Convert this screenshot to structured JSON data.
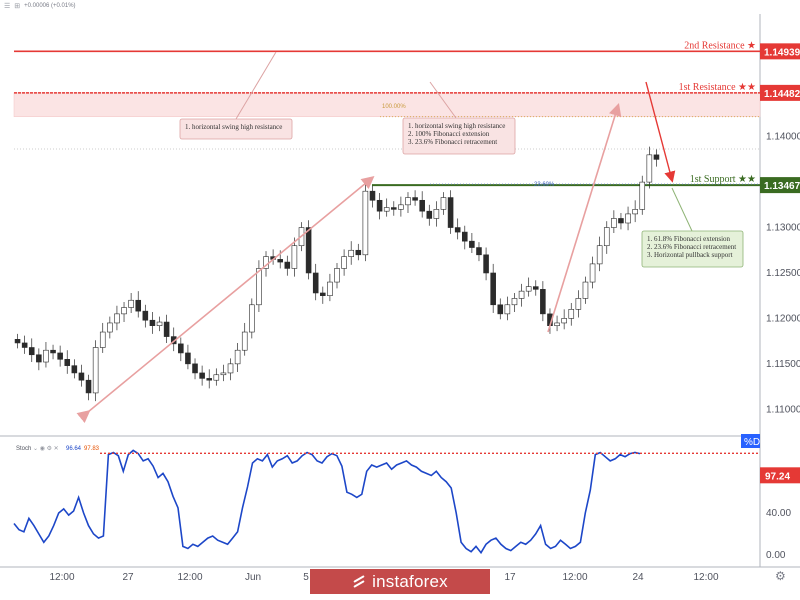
{
  "header": {
    "change_text": "+0.00006 (+0.01%)"
  },
  "colors": {
    "candle": "#2b2b2b",
    "resistance_line": "#e53935",
    "resistance_zone": "#fbe4e4",
    "support_line": "#3a6b21",
    "arrow_pink": "#e8a0a0",
    "stoch_line": "#1d47c8",
    "price_badge_red": "#e53935",
    "price_badge_green": "#3a6b21",
    "stoch_badge_blue": "#2962ff"
  },
  "chart_data": [
    {
      "type": "candlestick",
      "title": "",
      "y_ticks": [
        "1.14000",
        "1.13500",
        "1.13000",
        "1.12500",
        "1.12000",
        "1.11500",
        "1.11000"
      ],
      "ylim": [
        1.1075,
        1.1535
      ],
      "x_tick_labels": [
        "12:00",
        "27",
        "12:00",
        "Jun",
        "5",
        "17",
        "12:00",
        "24",
        "12:00"
      ],
      "series": [
        {
          "values": [
            1.1173,
            1.1168,
            1.116,
            1.1152,
            1.1165,
            1.1162,
            1.1155,
            1.1148,
            1.114,
            1.1132,
            1.1118,
            1.1168,
            1.1185,
            1.1195,
            1.1205,
            1.1212,
            1.122,
            1.1208,
            1.1198,
            1.1192,
            1.1196,
            1.118,
            1.1172,
            1.1162,
            1.115,
            1.114,
            1.1134,
            1.1132,
            1.1138,
            1.114,
            1.115,
            1.1165,
            1.1185,
            1.1215,
            1.1255,
            1.1268,
            1.1265,
            1.1262,
            1.1255,
            1.128,
            1.13,
            1.125,
            1.1228,
            1.1225,
            1.124,
            1.1255,
            1.1268,
            1.1275,
            1.127,
            1.134,
            1.133,
            1.1318,
            1.1322,
            1.132,
            1.1325,
            1.1333,
            1.133,
            1.1318,
            1.131,
            1.132,
            1.1333,
            1.13,
            1.1295,
            1.1285,
            1.1278,
            1.127,
            1.125,
            1.1215,
            1.1205,
            1.1215,
            1.1222,
            1.123,
            1.1235,
            1.1232,
            1.1205,
            1.1192,
            1.1195,
            1.12,
            1.121,
            1.1222,
            1.124,
            1.126,
            1.128,
            1.13,
            1.131,
            1.1305,
            1.1315,
            1.132,
            1.135,
            1.138,
            1.1375
          ]
        }
      ],
      "levels": [
        {
          "name": "2nd Resistance",
          "stars": "★",
          "value": 1.14939
        },
        {
          "name": "1st Resistance",
          "stars": "★★",
          "value": 1.14482
        },
        {
          "name": "1st Support",
          "stars": "★★",
          "value": 1.13467
        }
      ],
      "resistance_zone": [
        1.1422,
        1.14482
      ],
      "fib_labels": [
        "100.00%",
        "23.60%"
      ],
      "notes": [
        [
          "1. horizontal swing high resistance"
        ],
        [
          "1. horizontal swing high resistance",
          "2. 100% Fibonacci extension",
          "3. 23.6% Fibonacci retracement"
        ],
        [
          "1. 61.8% Fibonacci extension",
          "2. 23.6% Fibonacci retracement",
          "3. Horizontal pullback support"
        ]
      ]
    },
    {
      "type": "line",
      "title": "Stoch",
      "legend_values": [
        "96.64",
        "97.83"
      ],
      "y_ticks": [
        "40.00",
        "0.00"
      ],
      "ylim": [
        -5,
        110
      ],
      "current_value": "97.24",
      "badge_label": "%D",
      "overbought_level": 97.24,
      "series": [
        {
          "name": "%D",
          "values": [
            30,
            24,
            22,
            35,
            28,
            20,
            12,
            18,
            28,
            40,
            44,
            38,
            42,
            55,
            40,
            28,
            20,
            16,
            18,
            96,
            98,
            95,
            80,
            96,
            100,
            97,
            90,
            92,
            85,
            74,
            78,
            70,
            56,
            45,
            8,
            6,
            10,
            8,
            12,
            16,
            18,
            14,
            12,
            10,
            16,
            22,
            45,
            65,
            88,
            92,
            90,
            96,
            84,
            90,
            92,
            95,
            88,
            90,
            95,
            98,
            96,
            90,
            88,
            94,
            97,
            95,
            85,
            60,
            58,
            55,
            58,
            80,
            86,
            84,
            86,
            88,
            82,
            86,
            88,
            90,
            86,
            84,
            80,
            78,
            76,
            80,
            74,
            70,
            64,
            40,
            12,
            6,
            3,
            8,
            2,
            10,
            14,
            16,
            10,
            6,
            4,
            8,
            12,
            10,
            14,
            20,
            28,
            10,
            6,
            8,
            14,
            10,
            6,
            8,
            12,
            40,
            62,
            96,
            98,
            94,
            90,
            92,
            96,
            94,
            97,
            98,
            97
          ]
        }
      ]
    }
  ]
}
